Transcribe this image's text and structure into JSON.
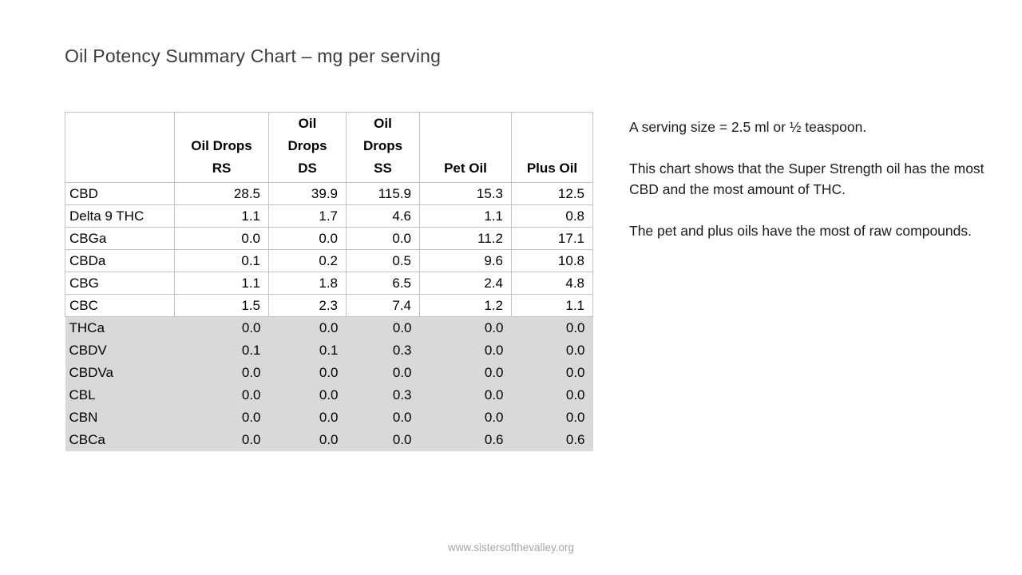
{
  "slide": {
    "title": "Oil Potency Summary Chart – mg per serving",
    "footer": "www.sistersofthevalley.org"
  },
  "notes": [
    "A serving size = 2.5 ml or ½ teaspoon.",
    "This chart shows that the Super Strength oil has the most CBD and the most amount of THC.",
    "The pet and plus oils have the most of raw compounds."
  ],
  "colors": {
    "shaded_row_bg": "#d9d9d9",
    "table_border": "#c3c3c3",
    "title_text": "#3d3d3d",
    "footer_text": "#a6a6a6"
  },
  "chart_data": {
    "type": "table",
    "title": "Oil Potency Summary Chart – mg per serving",
    "unit": "mg per serving",
    "columns": [
      "",
      "Oil Drops RS",
      "Oil Drops DS",
      "Oil Drops SS",
      "Pet Oil",
      "Plus Oil"
    ],
    "rows": [
      {
        "label": "CBD",
        "values": [
          28.5,
          39.9,
          115.9,
          15.3,
          12.5
        ],
        "shaded": false
      },
      {
        "label": "Delta 9 THC",
        "values": [
          1.1,
          1.7,
          4.6,
          1.1,
          0.8
        ],
        "shaded": false
      },
      {
        "label": "CBGa",
        "values": [
          0.0,
          0.0,
          0.0,
          11.2,
          17.1
        ],
        "shaded": false
      },
      {
        "label": "CBDa",
        "values": [
          0.1,
          0.2,
          0.5,
          9.6,
          10.8
        ],
        "shaded": false
      },
      {
        "label": "CBG",
        "values": [
          1.1,
          1.8,
          6.5,
          2.4,
          4.8
        ],
        "shaded": false
      },
      {
        "label": "CBC",
        "values": [
          1.5,
          2.3,
          7.4,
          1.2,
          1.1
        ],
        "shaded": false
      },
      {
        "label": "THCa",
        "values": [
          0.0,
          0.0,
          0.0,
          0.0,
          0.0
        ],
        "shaded": true
      },
      {
        "label": "CBDV",
        "values": [
          0.1,
          0.1,
          0.3,
          0.0,
          0.0
        ],
        "shaded": true
      },
      {
        "label": "CBDVa",
        "values": [
          0.0,
          0.0,
          0.0,
          0.0,
          0.0
        ],
        "shaded": true
      },
      {
        "label": "CBL",
        "values": [
          0.0,
          0.0,
          0.3,
          0.0,
          0.0
        ],
        "shaded": true
      },
      {
        "label": "CBN",
        "values": [
          0.0,
          0.0,
          0.0,
          0.0,
          0.0
        ],
        "shaded": true
      },
      {
        "label": "CBCa",
        "values": [
          0.0,
          0.0,
          0.0,
          0.6,
          0.6
        ],
        "shaded": true
      }
    ]
  }
}
